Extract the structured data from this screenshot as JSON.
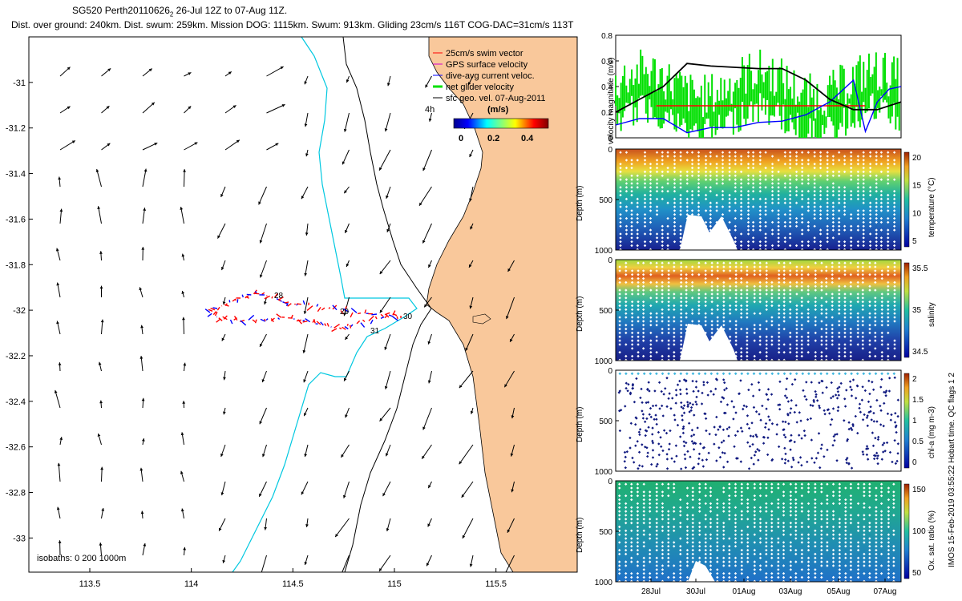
{
  "header": {
    "title_prefix": "SG520 Perth20110626",
    "title_sub": "2",
    "title_suffix": " 26-Jul 12Z to 07-Aug 11Z.",
    "stats": "Dist. over ground: 240km. Dist. swum: 259km. Mission DOG: 1115km. Swum: 913km. Gliding 23cm/s 116T COG-DAC=31cm/s 113T"
  },
  "colors": {
    "land": "#f9c89b",
    "isobath": "#00c8e0",
    "swim": "#ff0000",
    "gps": "#d000d0",
    "dac": "#0000ff",
    "net": "#00e000"
  },
  "chart_data": [
    {
      "type": "line",
      "title": "map",
      "xlim": [
        113.2,
        115.9
      ],
      "ylim": [
        -33.15,
        -30.8
      ],
      "xticks": [
        113.5,
        114,
        114.5,
        115,
        115.5
      ],
      "xtick_labels": [
        "113.5",
        "114",
        "114.5",
        "115",
        "115.5"
      ],
      "yticks": [
        -31,
        -31.2,
        -31.4,
        -31.6,
        -31.8,
        -32,
        -32.2,
        -32.4,
        -32.6,
        -32.8,
        -33
      ],
      "ytick_labels": [
        "-31",
        "-31.2",
        "-31.4",
        "-31.6",
        "-31.8",
        "-32",
        "-32.2",
        "-32.4",
        "-32.6",
        "-32.8",
        "-33"
      ],
      "legend": [
        "25cm/s swim vector",
        "GPS surface velocity",
        "dive-avg current veloc.",
        "net glider velocity",
        "sfc geo. vel. 07-Aug-2011"
      ],
      "legend_position": "top-right",
      "colorbar_label": "(m/s)",
      "colorbar_ticks": [
        "0",
        "0.2",
        "0.4"
      ],
      "colorbar_range": [
        0,
        0.5
      ],
      "scale_label": "4h",
      "isobaths_label": "isobaths: 0   200  1000m",
      "track_labels": [
        "29",
        "30",
        "31",
        "28"
      ]
    },
    {
      "type": "line",
      "title": "velocity",
      "ylabel": "velocity magnitude (m/s)",
      "ylim": [
        0,
        0.8
      ],
      "yticks": [
        0,
        0.2,
        0.4,
        0.6,
        0.8
      ],
      "ytick_labels": [
        "0",
        "0.2",
        "0.4",
        "0.6",
        "0.8"
      ],
      "xlim": [
        0,
        12
      ],
      "series": [
        {
          "name": "swim",
          "x": [
            1.7,
            10.5
          ],
          "values": [
            0.25,
            0.25
          ]
        },
        {
          "name": "dac",
          "x": [
            0,
            1,
            2,
            3,
            4,
            5,
            6,
            7,
            8,
            9,
            10,
            10.5,
            11,
            11.5,
            12
          ],
          "values": [
            0.1,
            0.15,
            0.15,
            0.04,
            0.08,
            0.08,
            0.12,
            0.13,
            0.18,
            0.28,
            0.45,
            0.05,
            0.28,
            0.38,
            0.4
          ]
        },
        {
          "name": "net",
          "x": [
            0,
            1,
            2,
            3,
            4,
            5,
            6,
            7,
            8,
            9,
            10,
            11,
            12
          ],
          "values": [
            0.25,
            0.2,
            0.45,
            0.5,
            0.2,
            0.25,
            0.3,
            0.4,
            0.35,
            0.3,
            0.2,
            0.3,
            0.3
          ]
        },
        {
          "name": "ref",
          "x": [
            0,
            1,
            2,
            3,
            4,
            5,
            6,
            7,
            8,
            9,
            10,
            11,
            12
          ],
          "values": [
            0.2,
            0.3,
            0.4,
            0.58,
            0.56,
            0.55,
            0.54,
            0.54,
            0.45,
            0.3,
            0.22,
            0.22,
            0.28
          ]
        }
      ]
    },
    {
      "type": "heatmap",
      "title": "temperature",
      "ylabel": "Depth (m)",
      "ylim": [
        1000,
        0
      ],
      "yticks": [
        0,
        500,
        1000
      ],
      "ytick_labels": [
        "0",
        "500",
        "1000"
      ],
      "colorbar_label": "temperature (°C)",
      "colorbar_ticks": [
        "20",
        "15",
        "10",
        "5"
      ]
    },
    {
      "type": "heatmap",
      "title": "salinity",
      "ylabel": "Depth (m)",
      "ylim": [
        1000,
        0
      ],
      "yticks": [
        0,
        500,
        1000
      ],
      "ytick_labels": [
        "0",
        "500",
        "1000"
      ],
      "colorbar_label": "salinity",
      "colorbar_ticks": [
        "35.5",
        "35",
        "34.5"
      ]
    },
    {
      "type": "scatter",
      "title": "chl-a",
      "ylabel": "Depth (m)",
      "ylim": [
        1000,
        0
      ],
      "yticks": [
        0,
        500,
        1000
      ],
      "ytick_labels": [
        "0",
        "500",
        "1000"
      ],
      "colorbar_label": "chl-a (mg m-3)",
      "colorbar_ticks": [
        "2",
        "1.5",
        "1",
        "0.5",
        "0"
      ]
    },
    {
      "type": "heatmap",
      "title": "oxygen",
      "ylabel": "Depth (m)",
      "ylim": [
        1000,
        0
      ],
      "yticks": [
        0,
        500,
        1000
      ],
      "ytick_labels": [
        "0",
        "500",
        "1000"
      ],
      "colorbar_label": "Ox. sat. ratio (%)",
      "colorbar_ticks": [
        "150",
        "100",
        "50"
      ],
      "xtick_labels": [
        "28Jul",
        "30Jul",
        "01Aug",
        "03Aug",
        "05Aug",
        "07Aug"
      ]
    }
  ],
  "footer": {
    "qc_note": "IMOS 15-Feb-2019 03:55:22 Hobart time. QC flags 1  2"
  }
}
